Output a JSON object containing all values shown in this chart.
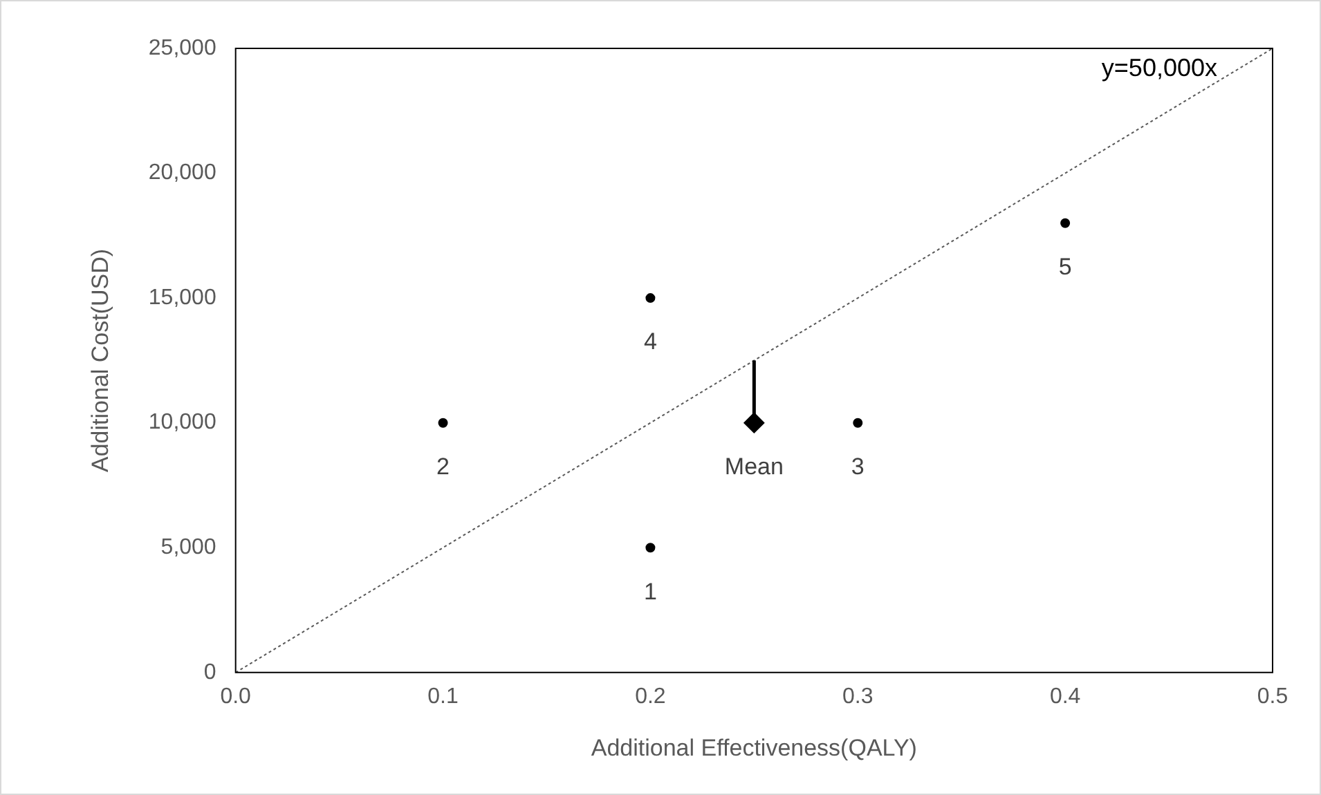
{
  "chart_data": {
    "type": "scatter",
    "xlabel": "Additional Effectiveness(QALY)",
    "ylabel": "Additional Cost(USD)",
    "xlim": [
      0,
      0.5
    ],
    "xticks": [
      {
        "value": 0,
        "label": "0.0"
      },
      {
        "value": 0.1,
        "label": "0.1"
      },
      {
        "value": 0.2,
        "label": "0.2"
      },
      {
        "value": 0.3,
        "label": "0.3"
      },
      {
        "value": 0.4,
        "label": "0.4"
      },
      {
        "value": 0.5,
        "label": "0.5"
      }
    ],
    "ylim": [
      0,
      25000
    ],
    "yticks": [
      0,
      {
        "value": 5000,
        "label": "5,000"
      },
      {
        "value": 10000,
        "label": "10,000"
      },
      {
        "value": 15000,
        "label": "15,000"
      },
      {
        "value": 20000,
        "label": "20,000"
      },
      {
        "value": 25000,
        "label": "25,000"
      }
    ],
    "grid": false,
    "legend": false,
    "series": [
      {
        "color": "#000000",
        "marker": "circle",
        "x": [
          0.2,
          0.1,
          0.3,
          0.2,
          0.4
        ],
        "values": [
          5000,
          10000,
          10000,
          15000,
          18000
        ]
      },
      {
        "color": "#000000",
        "marker": "diamond",
        "x": [
          0.25
        ],
        "values": [
          10000
        ],
        "errors": [
          [
            10000,
            12500
          ]
        ]
      },
      {
        "type": "line",
        "color": "#595959",
        "line_style": "dotted",
        "marker": "none",
        "x": [
          0,
          0.5
        ],
        "values": [
          0,
          25000
        ]
      }
    ],
    "annotations": [
      {
        "text": "1",
        "x": 0.2,
        "y": 5000
      },
      {
        "text": "2",
        "x": 0.1,
        "y": 10000
      },
      {
        "text": "3",
        "x": 0.3,
        "y": 10000
      },
      {
        "text": "4",
        "x": 0.2,
        "y": 15000
      },
      {
        "text": "5",
        "x": 0.4,
        "y": 18000
      },
      {
        "text": "Mean",
        "x": 0.25,
        "y": 10000
      },
      "y=50,000x"
    ]
  }
}
